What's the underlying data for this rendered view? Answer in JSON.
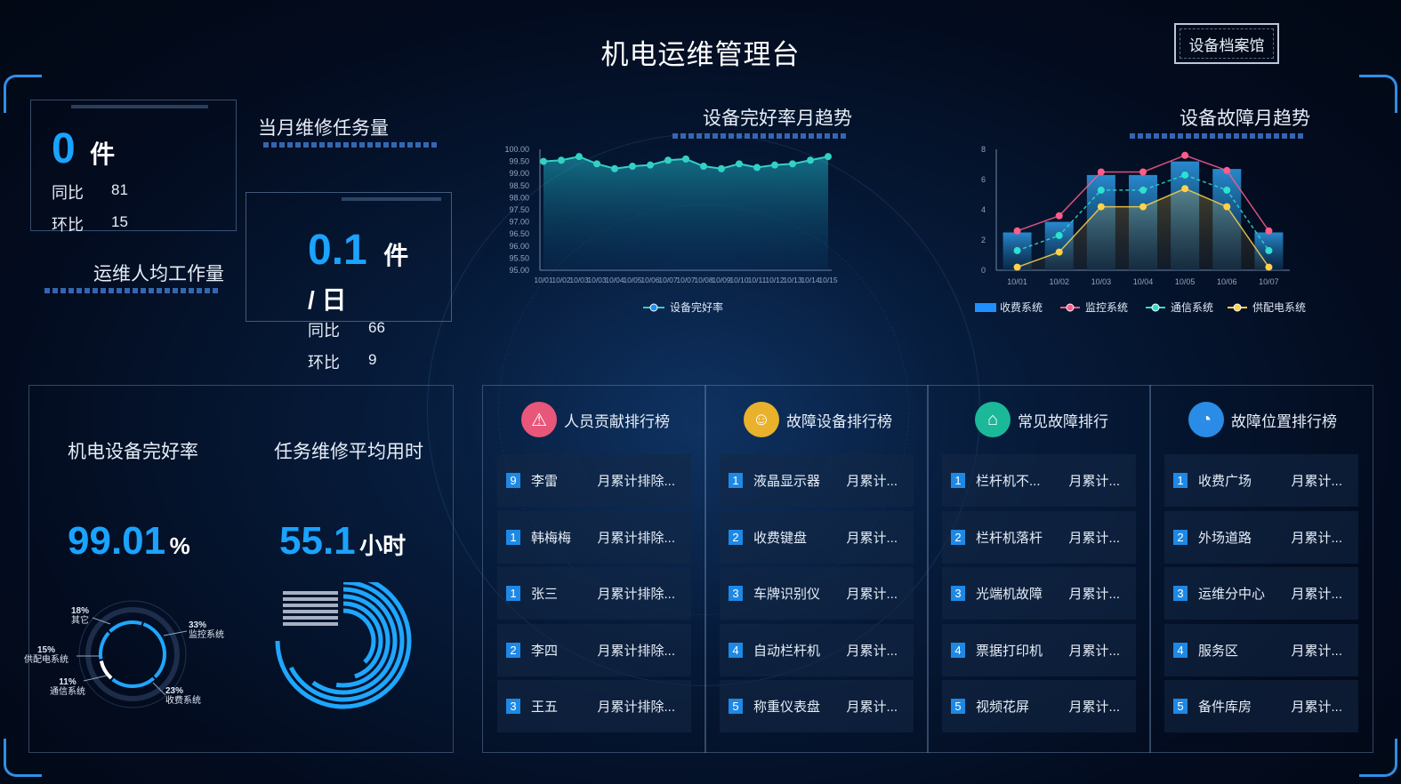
{
  "header": {
    "title": "机电运维管理台",
    "archive_button": "设备档案馆"
  },
  "monthly_tasks": {
    "title": "当月维修任务量",
    "value": "0",
    "unit": "件",
    "yoy_label": "同比",
    "yoy_value": "81",
    "mom_label": "环比",
    "mom_value": "15"
  },
  "per_capita": {
    "title": "运维人均工作量",
    "value": "0.1",
    "unit": "件",
    "unit2": "/ 日",
    "yoy_label": "同比",
    "yoy_value": "66",
    "mom_label": "环比",
    "mom_value": "9"
  },
  "colors": {
    "accent": "#1aa3ff",
    "toll": "#1e90ff",
    "monitor": "#ff5c8a",
    "comm": "#2de0d0",
    "power": "#ffd24a"
  },
  "chart_data": [
    {
      "type": "area",
      "title": "设备完好率月趋势",
      "x": [
        "10/01",
        "10/02",
        "10/03",
        "10/03",
        "10/04",
        "10/05",
        "10/06",
        "10/07",
        "10/07",
        "10/08",
        "10/09",
        "10/10",
        "10/11",
        "10/12",
        "10/13",
        "10/14",
        "10/15"
      ],
      "series": [
        {
          "name": "设备完好率",
          "values": [
            99.5,
            99.55,
            99.7,
            99.4,
            99.2,
            99.3,
            99.35,
            99.55,
            99.6,
            99.3,
            99.2,
            99.4,
            99.25,
            99.35,
            99.4,
            99.55,
            99.7
          ]
        }
      ],
      "yticks": [
        "100.00",
        "99.50",
        "99.00",
        "98.50",
        "98.00",
        "97.50",
        "97.00",
        "96.50",
        "96.00",
        "95.50",
        "95.00"
      ],
      "ylim": [
        95,
        100
      ],
      "legend": "bottom"
    },
    {
      "type": "bar",
      "title": "设备故障月趋势",
      "categories": [
        "10/01",
        "10/02",
        "10/03",
        "10/04",
        "10/05",
        "10/06",
        "10/07"
      ],
      "series": [
        {
          "name": "收费系统",
          "type": "bar",
          "values": [
            2.5,
            3.2,
            6.3,
            6.3,
            7.2,
            6.7,
            2.5
          ]
        },
        {
          "name": "监控系统",
          "type": "line",
          "values": [
            2.6,
            3.6,
            6.5,
            6.5,
            7.6,
            6.6,
            2.6
          ]
        },
        {
          "name": "通信系统",
          "type": "line",
          "values": [
            1.3,
            2.3,
            5.3,
            5.3,
            6.3,
            5.3,
            1.3
          ]
        },
        {
          "name": "供配电系统",
          "type": "line",
          "values": [
            0.2,
            1.2,
            4.2,
            4.2,
            5.4,
            4.2,
            0.2
          ]
        }
      ],
      "yticks": [
        "8",
        "6",
        "4",
        "2",
        "0"
      ],
      "ylim": [
        0,
        8
      ],
      "legend": "bottom"
    },
    {
      "type": "pie",
      "title": "机电设备完好率",
      "value_label": "99.01",
      "unit": "%",
      "slices": [
        {
          "label": "监控系统",
          "percent": "33%",
          "value": 33
        },
        {
          "label": "收费系统",
          "percent": "23%",
          "value": 23
        },
        {
          "label": "通信系统",
          "percent": "11%",
          "value": 11
        },
        {
          "label": "供配电系统",
          "percent": "15%",
          "value": 15
        },
        {
          "label": "其它",
          "percent": "18%",
          "value": 18
        }
      ]
    },
    {
      "type": "bar",
      "title": "任务维修平均用时",
      "value_label": "55.1",
      "unit": "小时",
      "categories": [
        "",
        "",
        "",
        "",
        "",
        ""
      ],
      "values": [
        1,
        0.9,
        0.8,
        0.7,
        0.6,
        0.5
      ]
    }
  ],
  "rankings": [
    {
      "title": "人员贡献排行榜",
      "icon": "warning-icon",
      "rows": [
        {
          "num": "9",
          "name": "李雷",
          "desc": "月累计排除..."
        },
        {
          "num": "1",
          "name": "韩梅梅",
          "desc": "月累计排除..."
        },
        {
          "num": "1",
          "name": "张三",
          "desc": "月累计排除..."
        },
        {
          "num": "2",
          "name": "李四",
          "desc": "月累计排除..."
        },
        {
          "num": "3",
          "name": "王五",
          "desc": "月累计排除..."
        }
      ]
    },
    {
      "title": "故障设备排行榜",
      "icon": "person-icon",
      "rows": [
        {
          "num": "1",
          "name": "液晶显示器",
          "desc": "月累计..."
        },
        {
          "num": "2",
          "name": "收费键盘",
          "desc": "月累计..."
        },
        {
          "num": "3",
          "name": "车牌识别仪",
          "desc": "月累计..."
        },
        {
          "num": "4",
          "name": "自动栏杆机",
          "desc": "月累计..."
        },
        {
          "num": "5",
          "name": "称重仪表盘",
          "desc": "月累计..."
        }
      ]
    },
    {
      "title": "常见故障排行",
      "icon": "train-icon",
      "rows": [
        {
          "num": "1",
          "name": "栏杆机不...",
          "desc": "月累计..."
        },
        {
          "num": "2",
          "name": "栏杆机落杆",
          "desc": "月累计..."
        },
        {
          "num": "3",
          "name": "光端机故障",
          "desc": "月累计..."
        },
        {
          "num": "4",
          "name": "票据打印机",
          "desc": "月累计..."
        },
        {
          "num": "5",
          "name": "视频花屏",
          "desc": "月累计..."
        }
      ]
    },
    {
      "title": "故障位置排行榜",
      "icon": "location-icon",
      "rows": [
        {
          "num": "1",
          "name": "收费广场",
          "desc": "月累计..."
        },
        {
          "num": "2",
          "name": "外场道路",
          "desc": "月累计..."
        },
        {
          "num": "3",
          "name": "运维分中心",
          "desc": "月累计..."
        },
        {
          "num": "4",
          "name": "服务区",
          "desc": "月累计..."
        },
        {
          "num": "5",
          "name": "备件库房",
          "desc": "月累计..."
        }
      ]
    }
  ]
}
